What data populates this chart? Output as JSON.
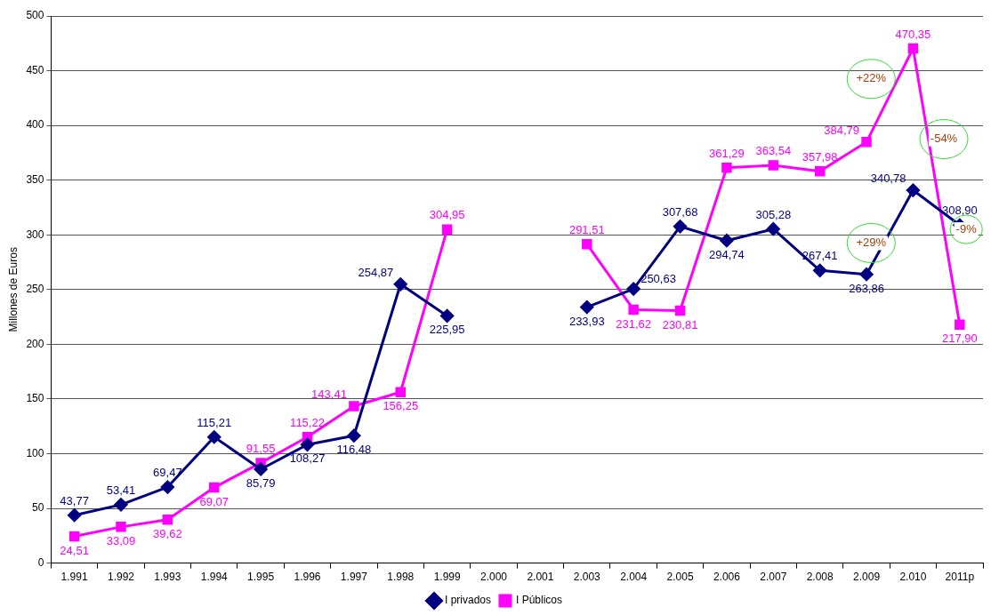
{
  "chart_data": {
    "type": "line",
    "ylabel": "Millones de Euros",
    "categories": [
      "1.991",
      "1.992",
      "1.993",
      "1.994",
      "1.995",
      "1.996",
      "1.997",
      "1.998",
      "1.999",
      "2.000",
      "2.001",
      "2.003",
      "2.004",
      "2.005",
      "2.006",
      "2.007",
      "2.008",
      "2.009",
      "2.010",
      "2011p"
    ],
    "series": [
      {
        "name": "I privados",
        "color": "#000080",
        "marker": "diamond",
        "values": [
          43.77,
          53.41,
          69.47,
          115.21,
          85.79,
          108.27,
          116.48,
          254.87,
          225.95,
          null,
          null,
          233.93,
          250.63,
          307.68,
          294.74,
          305.28,
          267.41,
          263.86,
          340.78,
          308.9
        ],
        "value_labels": [
          "43,77",
          "53,41",
          "69,47",
          "115,21",
          "85,79",
          "108,27",
          "116,48",
          "254,87",
          "225,95",
          null,
          null,
          "233,93",
          "250,63",
          "307,68",
          "294,74",
          "305,28",
          "267,41",
          "263,86",
          "340,78",
          "308,90"
        ]
      },
      {
        "name": "I Públicos",
        "color": "#ff00ff",
        "marker": "square",
        "values": [
          24.51,
          33.09,
          39.62,
          69.07,
          91.55,
          115.22,
          143.41,
          156.25,
          304.95,
          null,
          null,
          291.51,
          231.62,
          230.81,
          361.29,
          363.54,
          357.98,
          384.79,
          470.35,
          217.9
        ],
        "value_labels": [
          "24,51",
          "33,09",
          "39,62",
          "69,07",
          "91,55",
          "115,22",
          "143,41",
          "156,25",
          "304,95",
          null,
          null,
          "291,51",
          "231,62",
          "230,81",
          "361,29",
          "363,54",
          "357,98",
          "384,79",
          "470,35",
          "217,90"
        ]
      }
    ],
    "ylim": [
      0,
      500
    ],
    "yticks": [
      0,
      50,
      100,
      150,
      200,
      250,
      300,
      350,
      400,
      450,
      500
    ],
    "grid": "y",
    "legend": "bottom",
    "line_style": "solid",
    "annotations": [
      "+22%",
      "-54%",
      "+29%",
      "-9%"
    ]
  }
}
